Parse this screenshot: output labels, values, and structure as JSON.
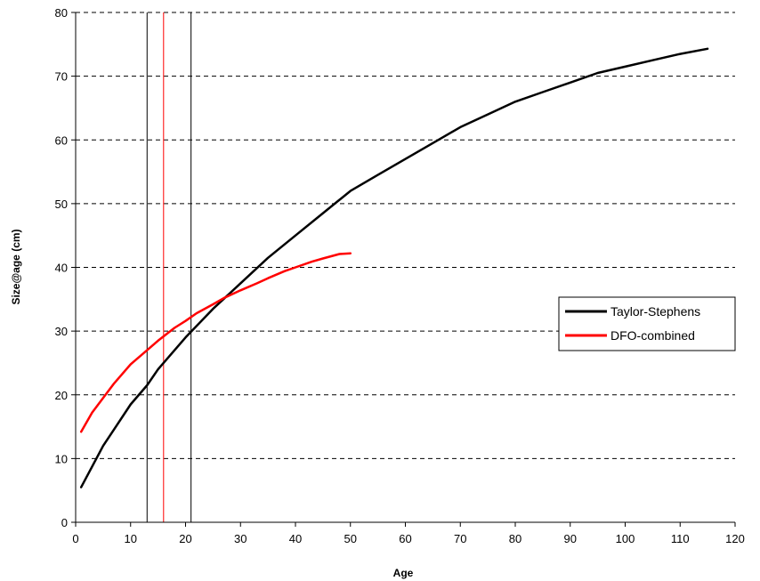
{
  "chart_data": {
    "type": "line",
    "xlabel": "Age",
    "ylabel": "Size@age (cm)",
    "xlim": [
      0,
      120
    ],
    "ylim": [
      0,
      80
    ],
    "xticks": [
      0,
      10,
      20,
      30,
      40,
      50,
      60,
      70,
      80,
      90,
      100,
      110,
      120
    ],
    "yticks": [
      0,
      10,
      20,
      30,
      40,
      50,
      60,
      70,
      80
    ],
    "grid": "horizontal-dashed",
    "legend": "right",
    "vertical_lines": [
      {
        "x": 13,
        "color": "#000000"
      },
      {
        "x": 16,
        "color": "#ff0000"
      },
      {
        "x": 21,
        "color": "#000000"
      }
    ],
    "series": [
      {
        "name": "Taylor-Stephens",
        "color": "#000000",
        "x": [
          1,
          5,
          10,
          13,
          15,
          20,
          25,
          30,
          35,
          40,
          45,
          50,
          55,
          60,
          65,
          70,
          75,
          80,
          85,
          90,
          95,
          100,
          105,
          110,
          115
        ],
        "y": [
          5.5,
          12,
          18.5,
          21.5,
          24,
          29,
          33.5,
          37.5,
          41.5,
          45,
          48.5,
          52,
          54.5,
          57,
          59.5,
          62,
          64,
          66,
          67.5,
          69,
          70.5,
          71.5,
          72.5,
          73.5,
          74.3
        ]
      },
      {
        "name": "DFO-combined",
        "color": "#ff0000",
        "x": [
          1,
          3,
          5,
          7,
          10,
          13,
          15,
          18,
          20,
          22,
          25,
          27,
          30,
          33,
          35,
          38,
          40,
          43,
          45,
          48,
          50
        ],
        "y": [
          14.2,
          17.2,
          19.5,
          21.8,
          24.8,
          27.0,
          28.5,
          30.5,
          31.6,
          32.8,
          34.2,
          35.2,
          36.4,
          37.5,
          38.3,
          39.4,
          40.0,
          40.9,
          41.4,
          42.1,
          42.2
        ]
      }
    ]
  }
}
